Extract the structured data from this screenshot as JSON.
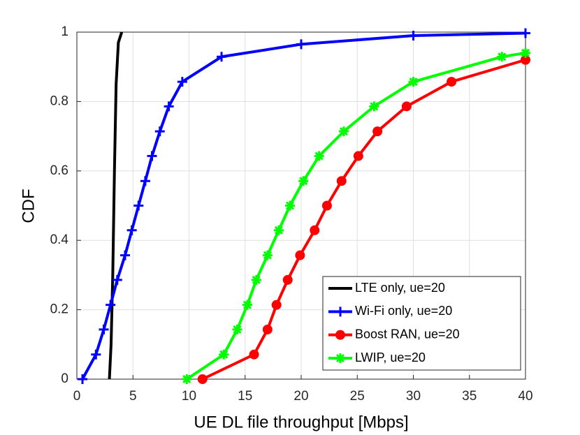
{
  "chart_data": {
    "type": "line",
    "xlabel": "UE DL file throughput [Mbps]",
    "ylabel": "CDF",
    "xlim": [
      0,
      40
    ],
    "ylim": [
      0,
      1
    ],
    "xticks": [
      0,
      5,
      10,
      15,
      20,
      25,
      30,
      35,
      40
    ],
    "yticks": [
      0,
      0.2,
      0.4,
      0.6,
      0.8,
      1
    ],
    "grid": true,
    "legend": "lower right",
    "series": [
      {
        "name": "LTE only, ue=20",
        "color": "#000000",
        "marker": "none",
        "x": [
          2.9,
          3.05,
          3.2,
          3.35,
          3.5,
          3.7,
          4.0
        ],
        "values": [
          0,
          0.1,
          0.3,
          0.6,
          0.85,
          0.97,
          1
        ]
      },
      {
        "name": "Wi-Fi only, ue=20",
        "color": "#0000ff",
        "marker": "plus",
        "x": [
          0.5,
          1.7,
          2.4,
          3.0,
          3.6,
          4.3,
          4.9,
          5.5,
          6.1,
          6.7,
          7.4,
          8.2,
          9.4,
          12.9,
          20,
          30,
          40
        ],
        "values": [
          0,
          0.071,
          0.143,
          0.214,
          0.286,
          0.357,
          0.429,
          0.5,
          0.571,
          0.643,
          0.714,
          0.786,
          0.857,
          0.929,
          0.965,
          0.99,
          0.997
        ]
      },
      {
        "name": "Boost RAN, ue=20",
        "color": "#ff0000",
        "marker": "circle",
        "x": [
          11.2,
          15.8,
          17.0,
          17.8,
          18.8,
          19.9,
          21.2,
          22.3,
          23.6,
          25.1,
          26.8,
          29.4,
          33.4,
          40
        ],
        "values": [
          0,
          0.071,
          0.143,
          0.214,
          0.286,
          0.357,
          0.429,
          0.5,
          0.571,
          0.643,
          0.714,
          0.786,
          0.857,
          0.92
        ]
      },
      {
        "name": "LWIP, ue=20",
        "color": "#00ff00",
        "marker": "asterisk",
        "x": [
          9.8,
          13.1,
          14.3,
          15.2,
          16.0,
          17.0,
          18.0,
          19.0,
          20.2,
          21.6,
          23.8,
          26.5,
          30.0,
          37.9,
          40
        ],
        "values": [
          0,
          0.071,
          0.143,
          0.214,
          0.286,
          0.357,
          0.429,
          0.5,
          0.571,
          0.643,
          0.714,
          0.786,
          0.857,
          0.929,
          0.94
        ]
      }
    ]
  }
}
